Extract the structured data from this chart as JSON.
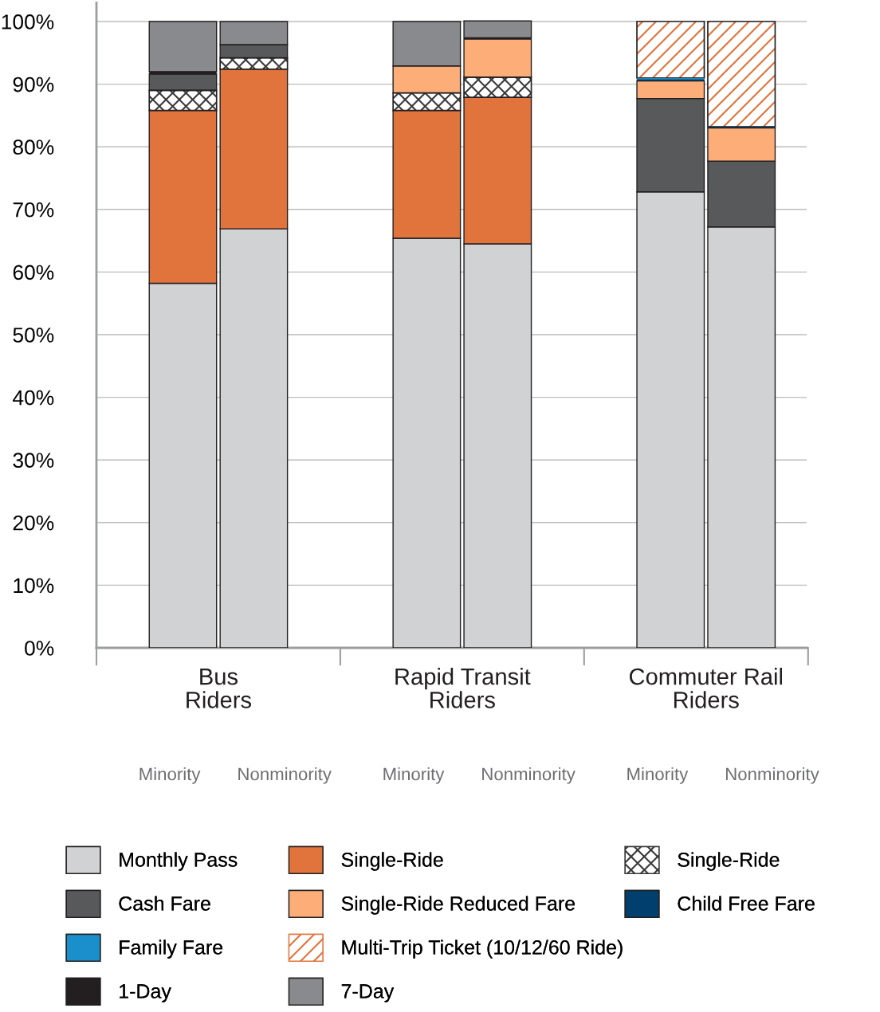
{
  "chart_data": {
    "type": "bar",
    "stacked": true,
    "categories": [
      "Minority",
      "Nonminority",
      "Minority",
      "Nonminority",
      "Minority",
      "Nonminority"
    ],
    "series": [
      {
        "name": "Monthly Pass",
        "color": "#d1d2d4",
        "values": [
          58.2,
          66.9,
          65.4,
          64.5,
          72.8,
          67.2
        ]
      },
      {
        "name": "Single-Ride",
        "color": "#e0743c",
        "values": [
          27.6,
          25.5,
          20.4,
          23.4,
          null,
          null
        ]
      },
      {
        "name": "Single-Ride",
        "color": "#3a3a3c",
        "values": [
          3.2,
          1.8,
          2.8,
          3.2,
          null,
          null
        ]
      },
      {
        "name": "Cash Fare",
        "color": "#58595b",
        "values": [
          2.6,
          2.1,
          null,
          null,
          14.9,
          10.5
        ]
      },
      {
        "name": "Single-Ride Reduced Fare",
        "color": "#fdae78",
        "values": [
          null,
          null,
          4.3,
          6.1,
          2.8,
          5.3
        ]
      },
      {
        "name": "Child Free Fare",
        "color": "#003f6e",
        "values": [
          null,
          null,
          null,
          null,
          0.2,
          0.2
        ]
      },
      {
        "name": "Family Fare",
        "color": "#1b8fcb",
        "values": [
          null,
          null,
          null,
          null,
          0.3,
          null
        ]
      },
      {
        "name": "Multi-Trip Ticket (10/12/60 Ride)",
        "color": "#e0743c",
        "values": [
          null,
          null,
          null,
          null,
          9.0,
          16.8
        ]
      },
      {
        "name": "1-Day",
        "color": "#231f20",
        "values": [
          0.4,
          null,
          null,
          0.2,
          null,
          null
        ]
      },
      {
        "name": "7-Day",
        "color": "#898a8d",
        "values": [
          8.0,
          3.7,
          7.1,
          2.7,
          null,
          null
        ]
      }
    ],
    "ylim": [
      0,
      103
    ],
    "yticks": [
      {
        "value": 0,
        "label": "0%"
      },
      {
        "value": 10,
        "label": "10%"
      },
      {
        "value": 20,
        "label": "20%"
      },
      {
        "value": 30,
        "label": "30%"
      },
      {
        "value": 40,
        "label": "40%"
      },
      {
        "value": 50,
        "label": "50%"
      },
      {
        "value": 60,
        "label": "60%"
      },
      {
        "value": 70,
        "label": "70%"
      },
      {
        "value": 80,
        "label": "80%"
      },
      {
        "value": 90,
        "label": "90%"
      },
      {
        "value": 100,
        "label": "100%"
      }
    ],
    "grid": "y",
    "legend": "bottom",
    "annotations": [
      "Bus\nRiders",
      "Rapid Transit\nRiders",
      "Commuter Rail\nRiders"
    ]
  }
}
